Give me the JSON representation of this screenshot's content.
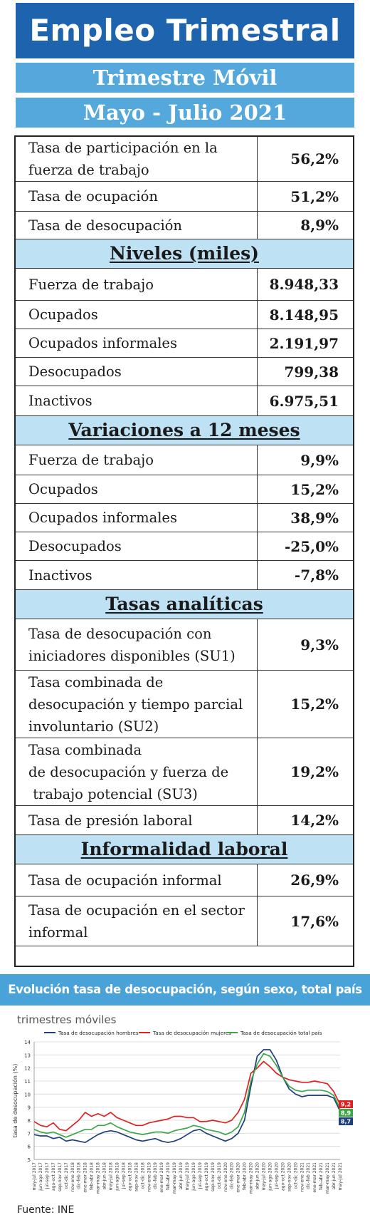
{
  "header": {
    "title": "Empleo Trimestral",
    "subtitle": "Trimestre Móvil",
    "period": "Mayo - Julio 2021"
  },
  "groups": [
    {
      "section": "",
      "rows": [
        {
          "label": "Tasa de participación en la\nfuerza de trabajo",
          "value": "56,2%"
        },
        {
          "label": "Tasa de ocupación",
          "value": "51,2%"
        },
        {
          "label": "Tasa de desocupación",
          "value": "8,9%"
        }
      ]
    },
    {
      "section": "Niveles  (miles)",
      "rows": [
        {
          "label": "Fuerza de trabajo",
          "value": "8.948,33"
        },
        {
          "label": "Ocupados",
          "value": "8.148,95"
        },
        {
          "label": "Ocupados informales",
          "value": "2.191,97"
        },
        {
          "label": "Desocupados",
          "value": "799,38"
        },
        {
          "label": "Inactivos",
          "value": "6.975,51"
        }
      ]
    },
    {
      "section": "Variaciones a 12 meses",
      "rows": [
        {
          "label": "Fuerza de trabajo",
          "value": "9,9%"
        },
        {
          "label": "Ocupados",
          "value": "15,2%"
        },
        {
          "label": "Ocupados informales",
          "value": "38,9%"
        },
        {
          "label": "Desocupados",
          "value": "-25,0%"
        },
        {
          "label": "Inactivos",
          "value": "-7,8%"
        }
      ]
    },
    {
      "section": "Tasas  analíticas",
      "rows": [
        {
          "label": "Tasa de desocupación con\niniciadores disponibles (SU1)",
          "value": "9,3%"
        },
        {
          "label": "Tasa combinada de\ndesocupación y tiempo parcial\ninvoluntario (SU2)",
          "value": "15,2%"
        },
        {
          "label": "Tasa combinada\nde desocupación y fuerza de\n trabajo potencial (SU3)",
          "value": "19,2%"
        },
        {
          "label": "Tasa de presión laboral",
          "value": "14,2%"
        }
      ]
    },
    {
      "section": "Informalidad  laboral",
      "rows": [
        {
          "label": "Tasa de ocupación informal",
          "value": "26,9%"
        },
        {
          "label": "Tasa de ocupación en el sector\ninformal",
          "value": "17,6%"
        }
      ]
    }
  ],
  "chart_section": {
    "banner": "Evolución tasa de desocupación, según sexo, total país",
    "subtitle": "trimestres móviles",
    "source": "Fuente: INE"
  },
  "chart_data": {
    "type": "line",
    "title": "",
    "xlabel": "",
    "ylabel": "tasa de desocupación (%)",
    "ylim": [
      5,
      14
    ],
    "yticks": [
      5,
      6,
      7,
      8,
      9,
      10,
      11,
      12,
      13,
      14
    ],
    "grid": true,
    "legend": "top",
    "categories": [
      "may-jul 2017",
      "jun-ago 2017",
      "jul-sep 2017",
      "ago-oct 2017",
      "sep-nov 2017",
      "oct-dic 2017",
      "nov-ene 2018",
      "dic-feb 2018",
      "ene-mar 2018",
      "feb-abr 2018",
      "mar-may 2018",
      "abr-jun 2018",
      "may-jul 2018",
      "jun-ago 2018",
      "jul-sep 2018",
      "ago-oct 2018",
      "sep-nov 2018",
      "oct-dic 2018",
      "nov-ene 2019",
      "dic-feb 2019",
      "ene-mar 2019",
      "feb-abr 2019",
      "mar-may 2019",
      "abr-jun 2019",
      "may-jul 2019",
      "jun-ago 2019",
      "jul-sep 2019",
      "ago-oct 2019",
      "sep-nov 2019",
      "oct-dic 2019",
      "nov-ene 2020",
      "dic-feb 2020",
      "ene-mar 2020",
      "feb-abr 2020",
      "mar-may 2020",
      "abr-jun 2020",
      "may-jul 2020",
      "jun-ago 2020",
      "jul-sep 2020",
      "ago-oct 2020",
      "sep-nov 2020",
      "oct-dic 2020",
      "nov-ene 2021",
      "dic-feb 2021",
      "ene-mar 2021",
      "feb-abr 2021",
      "mar-may 2021",
      "abr-jun 2021",
      "may-jul 2021"
    ],
    "series": [
      {
        "name": "Tasa de desocupación hombres",
        "color": "#1f3f7a",
        "values": [
          6.9,
          6.8,
          6.8,
          6.6,
          6.7,
          6.4,
          6.5,
          6.4,
          6.3,
          6.6,
          6.9,
          7.1,
          7.2,
          7.1,
          6.9,
          6.7,
          6.5,
          6.4,
          6.5,
          6.6,
          6.4,
          6.3,
          6.4,
          6.6,
          6.9,
          7.2,
          7.3,
          7.0,
          6.8,
          6.6,
          6.4,
          6.6,
          7.0,
          8.0,
          10.6,
          12.9,
          13.4,
          13.4,
          12.6,
          11.3,
          10.4,
          10.0,
          9.8,
          9.9,
          9.9,
          9.9,
          9.9,
          9.7,
          8.7
        ]
      },
      {
        "name": "Tasa de desocupación mujeres",
        "color": "#e02020",
        "values": [
          7.9,
          7.6,
          7.5,
          7.8,
          7.3,
          7.2,
          7.6,
          8.0,
          8.6,
          8.3,
          8.5,
          8.3,
          8.6,
          8.2,
          8.0,
          7.8,
          7.6,
          7.6,
          7.8,
          7.9,
          8.0,
          8.1,
          8.3,
          8.3,
          8.2,
          8.2,
          7.9,
          7.9,
          8.0,
          7.9,
          7.8,
          8.0,
          8.6,
          9.6,
          11.6,
          12.0,
          12.5,
          12.1,
          11.6,
          11.3,
          11.1,
          11.0,
          10.9,
          10.9,
          11.0,
          10.9,
          10.8,
          10.2,
          9.2
        ]
      },
      {
        "name": "Tasa de desocupación total país",
        "color": "#3aa84a",
        "values": [
          7.3,
          7.1,
          7.0,
          7.1,
          6.9,
          6.7,
          6.9,
          7.1,
          7.3,
          7.3,
          7.6,
          7.6,
          7.8,
          7.5,
          7.3,
          7.1,
          7.0,
          6.9,
          7.0,
          7.1,
          7.1,
          7.0,
          7.2,
          7.3,
          7.4,
          7.6,
          7.5,
          7.3,
          7.2,
          7.1,
          6.9,
          7.1,
          7.5,
          8.6,
          11.0,
          12.3,
          13.1,
          12.9,
          12.2,
          11.3,
          10.6,
          10.3,
          10.2,
          10.3,
          10.3,
          10.3,
          10.2,
          9.9,
          8.9
        ]
      }
    ],
    "end_labels": [
      "9,2",
      "8,9",
      "8,7"
    ]
  }
}
